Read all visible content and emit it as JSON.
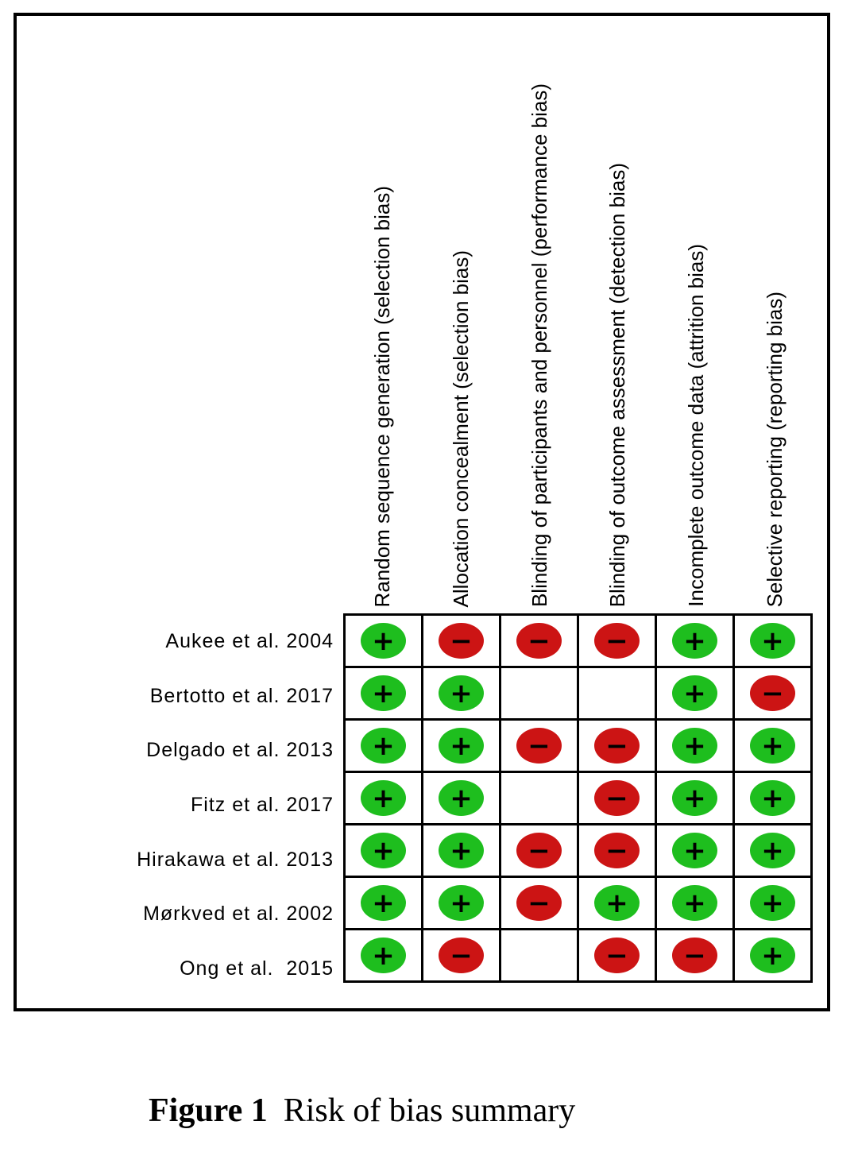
{
  "figure": {
    "columns": [
      "Random sequence generation (selection bias)",
      "Allocation concealment (selection bias)",
      "Blinding of participants and personnel (performance bias)",
      "Blinding of outcome assessment (detection bias)",
      "Incomplete outcome data (attrition bias)",
      "Selective reporting (reporting bias)"
    ],
    "rows": [
      {
        "study": "Aukee et al. 2004",
        "judgements": [
          "low",
          "high",
          "high",
          "high",
          "low",
          "low"
        ]
      },
      {
        "study": "Bertotto et al. 2017",
        "judgements": [
          "low",
          "low",
          "none",
          "none",
          "low",
          "high"
        ]
      },
      {
        "study": "Delgado et al. 2013",
        "judgements": [
          "low",
          "low",
          "high",
          "high",
          "low",
          "low"
        ]
      },
      {
        "study": "Fitz et al. 2017",
        "judgements": [
          "low",
          "low",
          "none",
          "high",
          "low",
          "low"
        ]
      },
      {
        "study": "Hirakawa et al. 2013",
        "judgements": [
          "low",
          "low",
          "high",
          "high",
          "low",
          "low"
        ]
      },
      {
        "study": "Mørkved et al. 2002",
        "judgements": [
          "low",
          "low",
          "high",
          "low",
          "low",
          "low"
        ]
      },
      {
        "study": "Ong et al.  2015",
        "judgements": [
          "low",
          "high",
          "none",
          "high",
          "high",
          "low"
        ]
      }
    ],
    "symbols": {
      "low": "+",
      "high": "−"
    },
    "colors": {
      "low": "#1ebe1e",
      "high": "#cc1414",
      "grid": "#000000"
    },
    "caption": {
      "label": "Figure 1",
      "text": "Risk of bias summary"
    }
  },
  "chart_data": {
    "type": "table",
    "title": "Risk of bias summary",
    "columns": [
      "Random sequence generation (selection bias)",
      "Allocation concealment (selection bias)",
      "Blinding of participants and personnel (performance bias)",
      "Blinding of outcome assessment (detection bias)",
      "Incomplete outcome data (attrition bias)",
      "Selective reporting (reporting bias)"
    ],
    "row_labels": [
      "Aukee et al. 2004",
      "Bertotto et al. 2017",
      "Delgado et al. 2013",
      "Fitz et al. 2017",
      "Hirakawa et al. 2013",
      "Mørkved et al. 2002",
      "Ong et al.  2015"
    ],
    "values": [
      [
        "low",
        "high",
        "high",
        "high",
        "low",
        "low"
      ],
      [
        "low",
        "low",
        "none",
        "none",
        "low",
        "high"
      ],
      [
        "low",
        "low",
        "high",
        "high",
        "low",
        "low"
      ],
      [
        "low",
        "low",
        "none",
        "high",
        "low",
        "low"
      ],
      [
        "low",
        "low",
        "high",
        "high",
        "low",
        "low"
      ],
      [
        "low",
        "low",
        "high",
        "low",
        "low",
        "low"
      ],
      [
        "low",
        "high",
        "none",
        "high",
        "high",
        "low"
      ]
    ],
    "legend": {
      "low": "green plus (low risk)",
      "high": "red minus (high risk)",
      "none": "blank (unclear)"
    }
  }
}
